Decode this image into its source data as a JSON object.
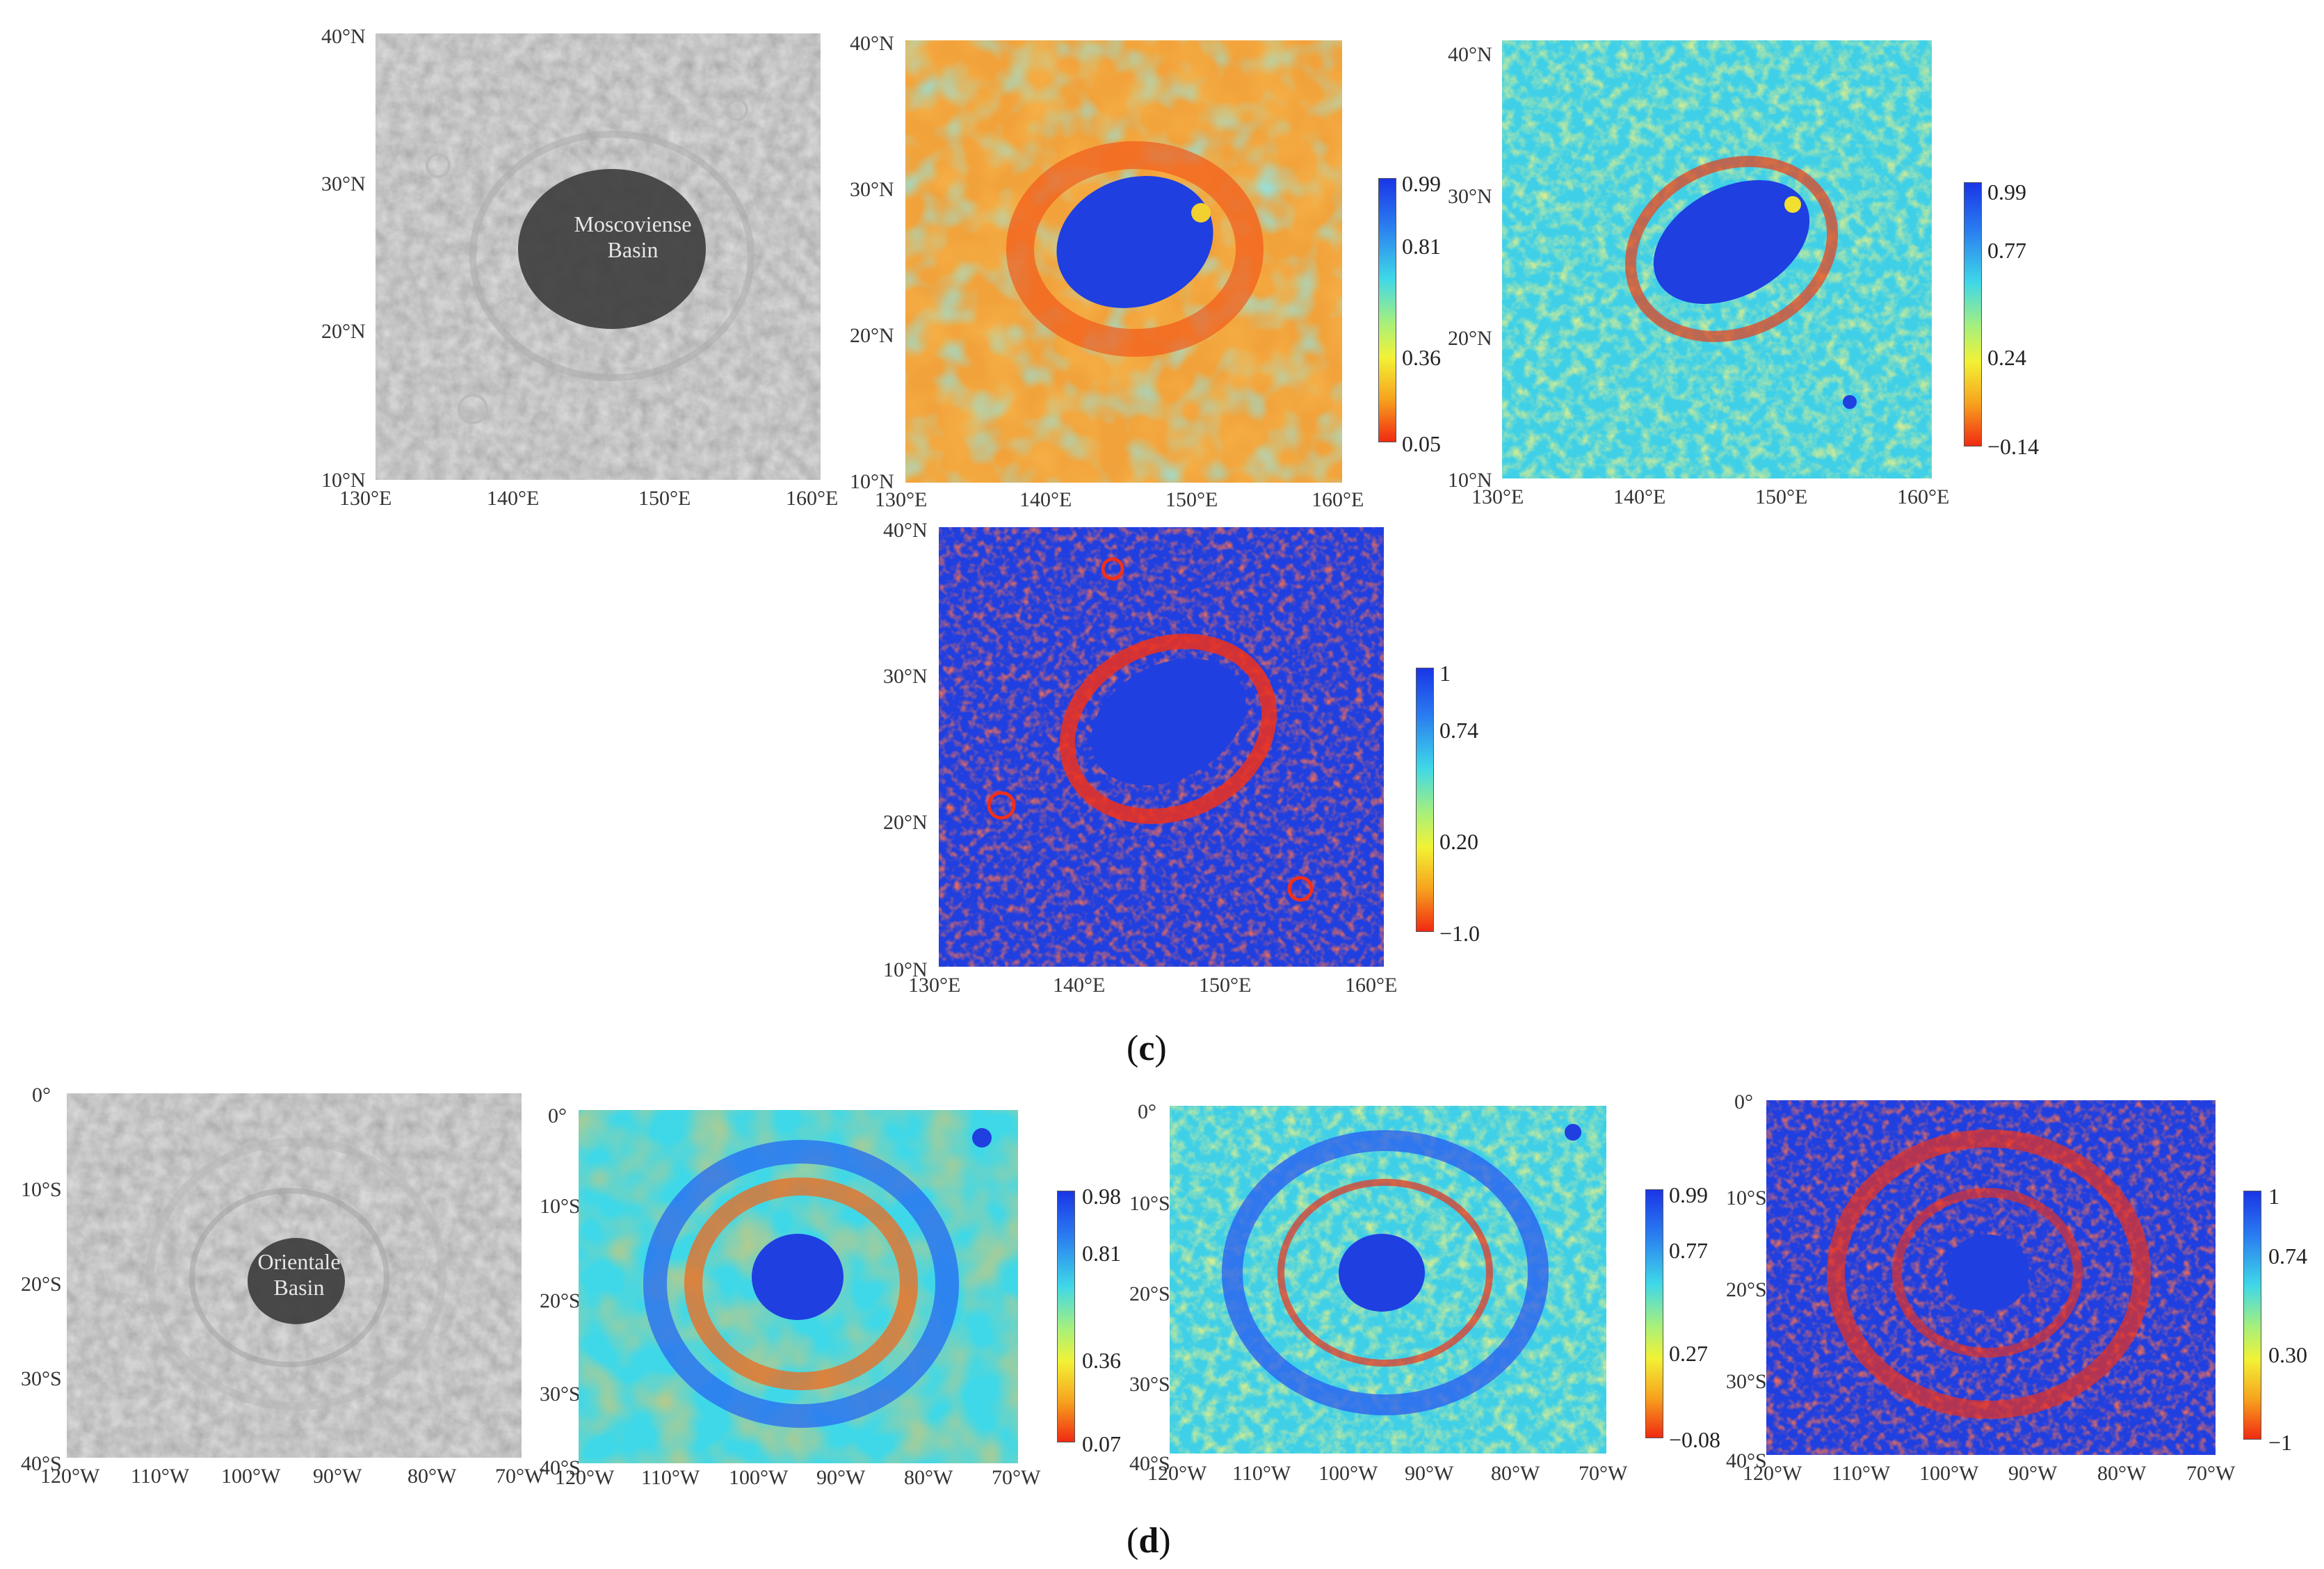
{
  "figure": {
    "caption_c": {
      "open": "(",
      "letter": "c",
      "close": ")"
    },
    "caption_d": {
      "open": "(",
      "letter": "d",
      "close": ")"
    }
  },
  "colors": {
    "cmap": [
      "#1a35e6",
      "#2a7df0",
      "#3fd8e8",
      "#a8f07a",
      "#f2f235",
      "#f7a21e",
      "#f02a12"
    ],
    "gray": "#8c8c8c"
  },
  "moscoviense": {
    "basin_label_line1": "Moscoviense",
    "basin_label_line2": "Basin",
    "lat_ticks": [
      "40°N",
      "30°N",
      "20°N",
      "10°N"
    ],
    "lon_ticks": [
      "130°E",
      "140°E",
      "150°E",
      "160°E"
    ],
    "colorbar_1": [
      "0.99",
      "0.81",
      "0.36",
      "0.05"
    ],
    "colorbar_2": [
      "0.99",
      "0.77",
      "0.24",
      "−0.14"
    ],
    "colorbar_3": [
      "1",
      "0.74",
      "0.20",
      "−1.0"
    ]
  },
  "orientale": {
    "basin_label_line1": "Orientale",
    "basin_label_line2": "Basin",
    "lat_ticks": [
      "0°",
      "10°S",
      "20°S",
      "30°S",
      "40°S"
    ],
    "lon_ticks": [
      "120°W",
      "110°W",
      "100°W",
      "90°W",
      "80°W",
      "70°W"
    ],
    "colorbar_1": [
      "0.98",
      "0.81",
      "0.36",
      "0.07"
    ],
    "colorbar_2": [
      "0.99",
      "0.77",
      "0.27",
      "−0.08"
    ],
    "colorbar_3": [
      "1",
      "0.74",
      "0.30",
      "−1"
    ]
  }
}
